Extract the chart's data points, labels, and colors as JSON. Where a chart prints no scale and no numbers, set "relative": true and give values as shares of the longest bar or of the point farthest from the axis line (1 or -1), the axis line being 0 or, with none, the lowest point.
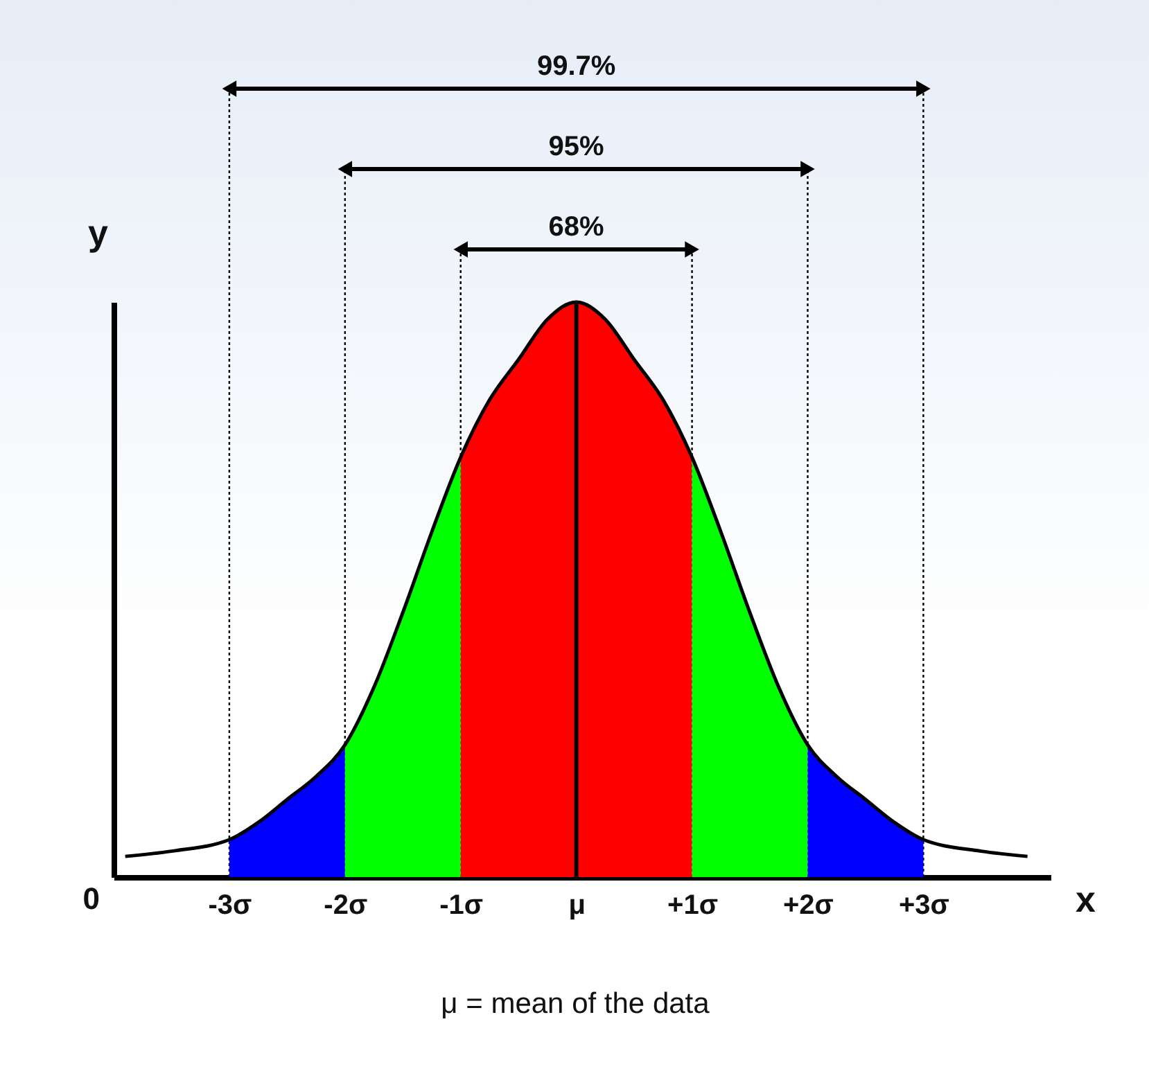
{
  "chart_data": {
    "type": "area",
    "relative": true,
    "xlabel": "x",
    "ylabel": "y",
    "xlim": [
      -4,
      4.1
    ],
    "xticks": [
      {
        "value": -3,
        "label": "-3σ"
      },
      {
        "value": -2,
        "label": "-2σ"
      },
      {
        "value": -1,
        "label": "-1σ"
      },
      {
        "value": 0,
        "label": "μ"
      },
      {
        "value": 1,
        "label": "+1σ"
      },
      {
        "value": 2,
        "label": "+2σ"
      },
      {
        "value": 3,
        "label": "+3σ"
      }
    ],
    "series": [
      {
        "color": "#0000ff",
        "x": [
          -3,
          -2.75,
          -2.5,
          -2.25,
          -2
        ],
        "values": [
          0.065,
          0.095,
          0.135,
          0.175,
          0.23
        ]
      },
      {
        "color": "#00ff00",
        "x": [
          -2,
          -1.75,
          -1.5,
          -1.25,
          -1
        ],
        "values": [
          0.23,
          0.33,
          0.46,
          0.6,
          0.73
        ]
      },
      {
        "color": "#ff0000",
        "x": [
          -1,
          -0.75,
          -0.5,
          -0.25,
          0,
          0.25,
          0.5,
          0.75,
          1
        ],
        "values": [
          0.73,
          0.83,
          0.9,
          0.97,
          1,
          0.97,
          0.9,
          0.83,
          0.73
        ]
      },
      {
        "color": "#00ff00",
        "x": [
          1,
          1.25,
          1.5,
          1.75,
          2
        ],
        "values": [
          0.73,
          0.6,
          0.46,
          0.33,
          0.23
        ]
      },
      {
        "color": "#0000ff",
        "x": [
          2,
          2.25,
          2.5,
          2.75,
          3
        ],
        "values": [
          0.23,
          0.175,
          0.135,
          0.095,
          0.065
        ]
      },
      {
        "type": "line",
        "color": "#000000",
        "x": [
          -3.9,
          -3.5,
          -3,
          -2.75,
          -2.5,
          -2.25,
          -2,
          -1.75,
          -1.5,
          -1.25,
          -1,
          -0.75,
          -0.5,
          -0.25,
          0,
          0.25,
          0.5,
          0.75,
          1,
          1.25,
          1.5,
          1.75,
          2,
          2.25,
          2.5,
          2.75,
          3,
          3.5,
          3.9
        ],
        "values": [
          0.036,
          0.045,
          0.065,
          0.095,
          0.135,
          0.175,
          0.23,
          0.33,
          0.46,
          0.6,
          0.73,
          0.83,
          0.9,
          0.97,
          1,
          0.97,
          0.9,
          0.83,
          0.73,
          0.6,
          0.46,
          0.33,
          0.23,
          0.175,
          0.135,
          0.095,
          0.065,
          0.045,
          0.036
        ]
      }
    ],
    "ref_lines": [
      {
        "axis": "x",
        "value": -1,
        "color": "#000000",
        "line_style": "dotted"
      },
      {
        "axis": "x",
        "value": 1,
        "color": "#000000",
        "line_style": "dotted"
      },
      {
        "axis": "x",
        "value": -2,
        "color": "#000000",
        "line_style": "dotted"
      },
      {
        "axis": "x",
        "value": 2,
        "color": "#000000",
        "line_style": "dotted"
      },
      {
        "axis": "x",
        "value": -3,
        "color": "#000000",
        "line_style": "dotted"
      },
      {
        "axis": "x",
        "value": 3,
        "color": "#000000",
        "line_style": "dotted"
      },
      {
        "axis": "x",
        "value": 0,
        "color": "#000000",
        "line_style": "solid"
      }
    ],
    "annotations": [
      "0",
      "68%",
      "95%",
      "99.7%",
      "μ = mean of the data"
    ]
  }
}
